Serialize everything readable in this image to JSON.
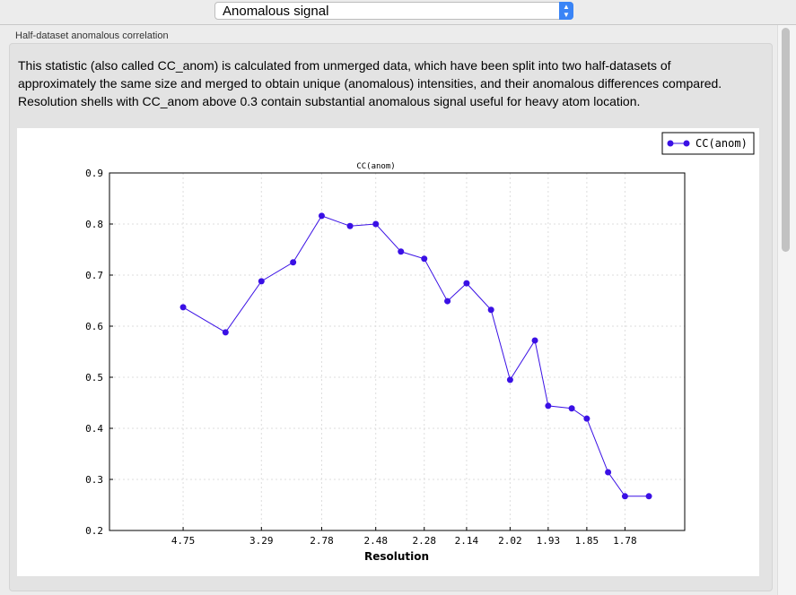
{
  "toolbar": {
    "selected_view": "Anomalous signal"
  },
  "group": {
    "title": "Half-dataset anomalous correlation",
    "description": "This statistic (also called CC_anom) is calculated from unmerged data, which have been split into two half-datasets of approximately the same size and merged to obtain unique (anomalous) intensities, and their anomalous differences compared.  Resolution shells with CC_anom above 0.3 contain substantial anomalous signal useful for heavy atom location."
  },
  "chart_data": {
    "type": "line",
    "title": "CC(anom)",
    "xlabel": "Resolution",
    "ylabel": "",
    "x_scale": "1/d^2 (tick labels show resolution d)",
    "ylim": [
      0.2,
      0.9
    ],
    "yticks": [
      "0.2",
      "0.3",
      "0.4",
      "0.5",
      "0.6",
      "0.7",
      "0.8",
      "0.9"
    ],
    "xticks": [
      "4.75",
      "3.29",
      "2.78",
      "2.48",
      "2.28",
      "2.14",
      "2.02",
      "1.93",
      "1.85",
      "1.78"
    ],
    "grid": true,
    "legend": "top-right",
    "color": "#3a10e5",
    "series": [
      {
        "name": "CC(anom)",
        "x": [
          4.75,
          3.77,
          3.29,
          2.99,
          2.78,
          2.61,
          2.48,
          2.37,
          2.28,
          2.2,
          2.14,
          2.07,
          2.02,
          1.96,
          1.93,
          1.88,
          1.85,
          1.81,
          1.78,
          1.74
        ],
        "y": [
          0.637,
          0.588,
          0.688,
          0.725,
          0.816,
          0.796,
          0.8,
          0.746,
          0.732,
          0.649,
          0.684,
          0.632,
          0.495,
          0.572,
          0.444,
          0.439,
          0.419,
          0.314,
          0.267,
          0.267
        ]
      }
    ]
  }
}
